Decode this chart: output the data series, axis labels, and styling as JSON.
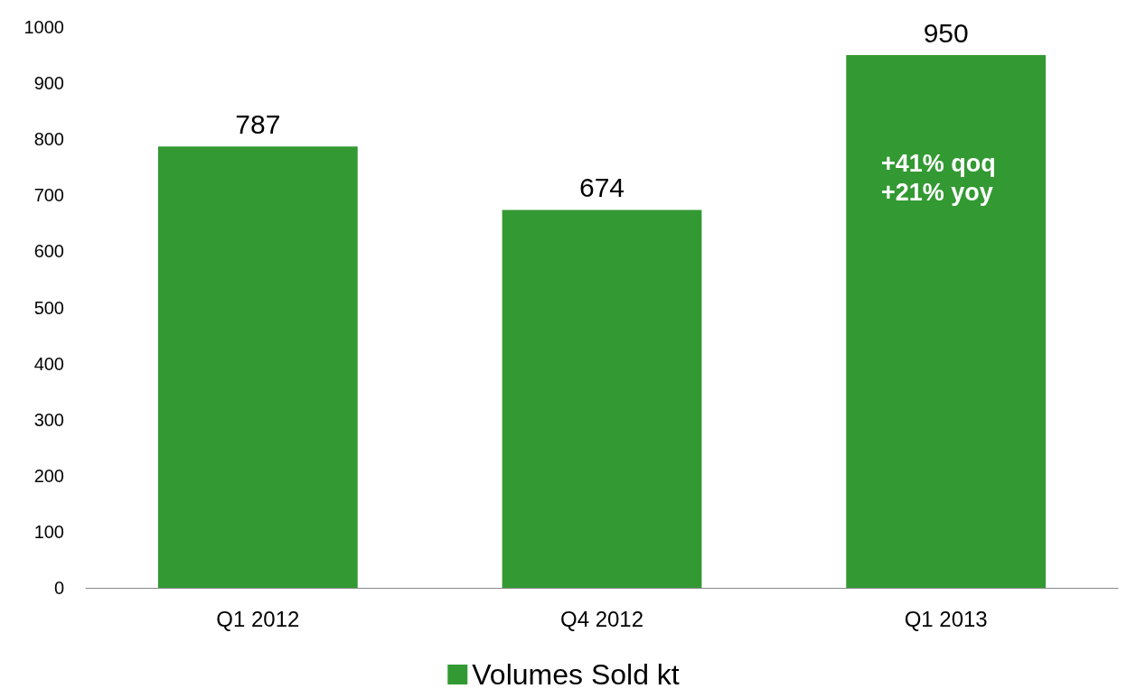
{
  "chart_data": {
    "type": "bar",
    "categories": [
      "Q1 2012",
      "Q4 2012",
      "Q1 2013"
    ],
    "series": [
      {
        "name": "Volumes Sold kt",
        "color": "#339933",
        "values": [
          787,
          674,
          950
        ]
      }
    ],
    "ylim": [
      0,
      1000
    ],
    "yticks": [
      0,
      100,
      200,
      300,
      400,
      500,
      600,
      700,
      800,
      900,
      1000
    ],
    "grid": false,
    "legend": "bottom",
    "data_labels": true,
    "annotations": [
      "+41% qoq\n+21% yoy"
    ]
  }
}
